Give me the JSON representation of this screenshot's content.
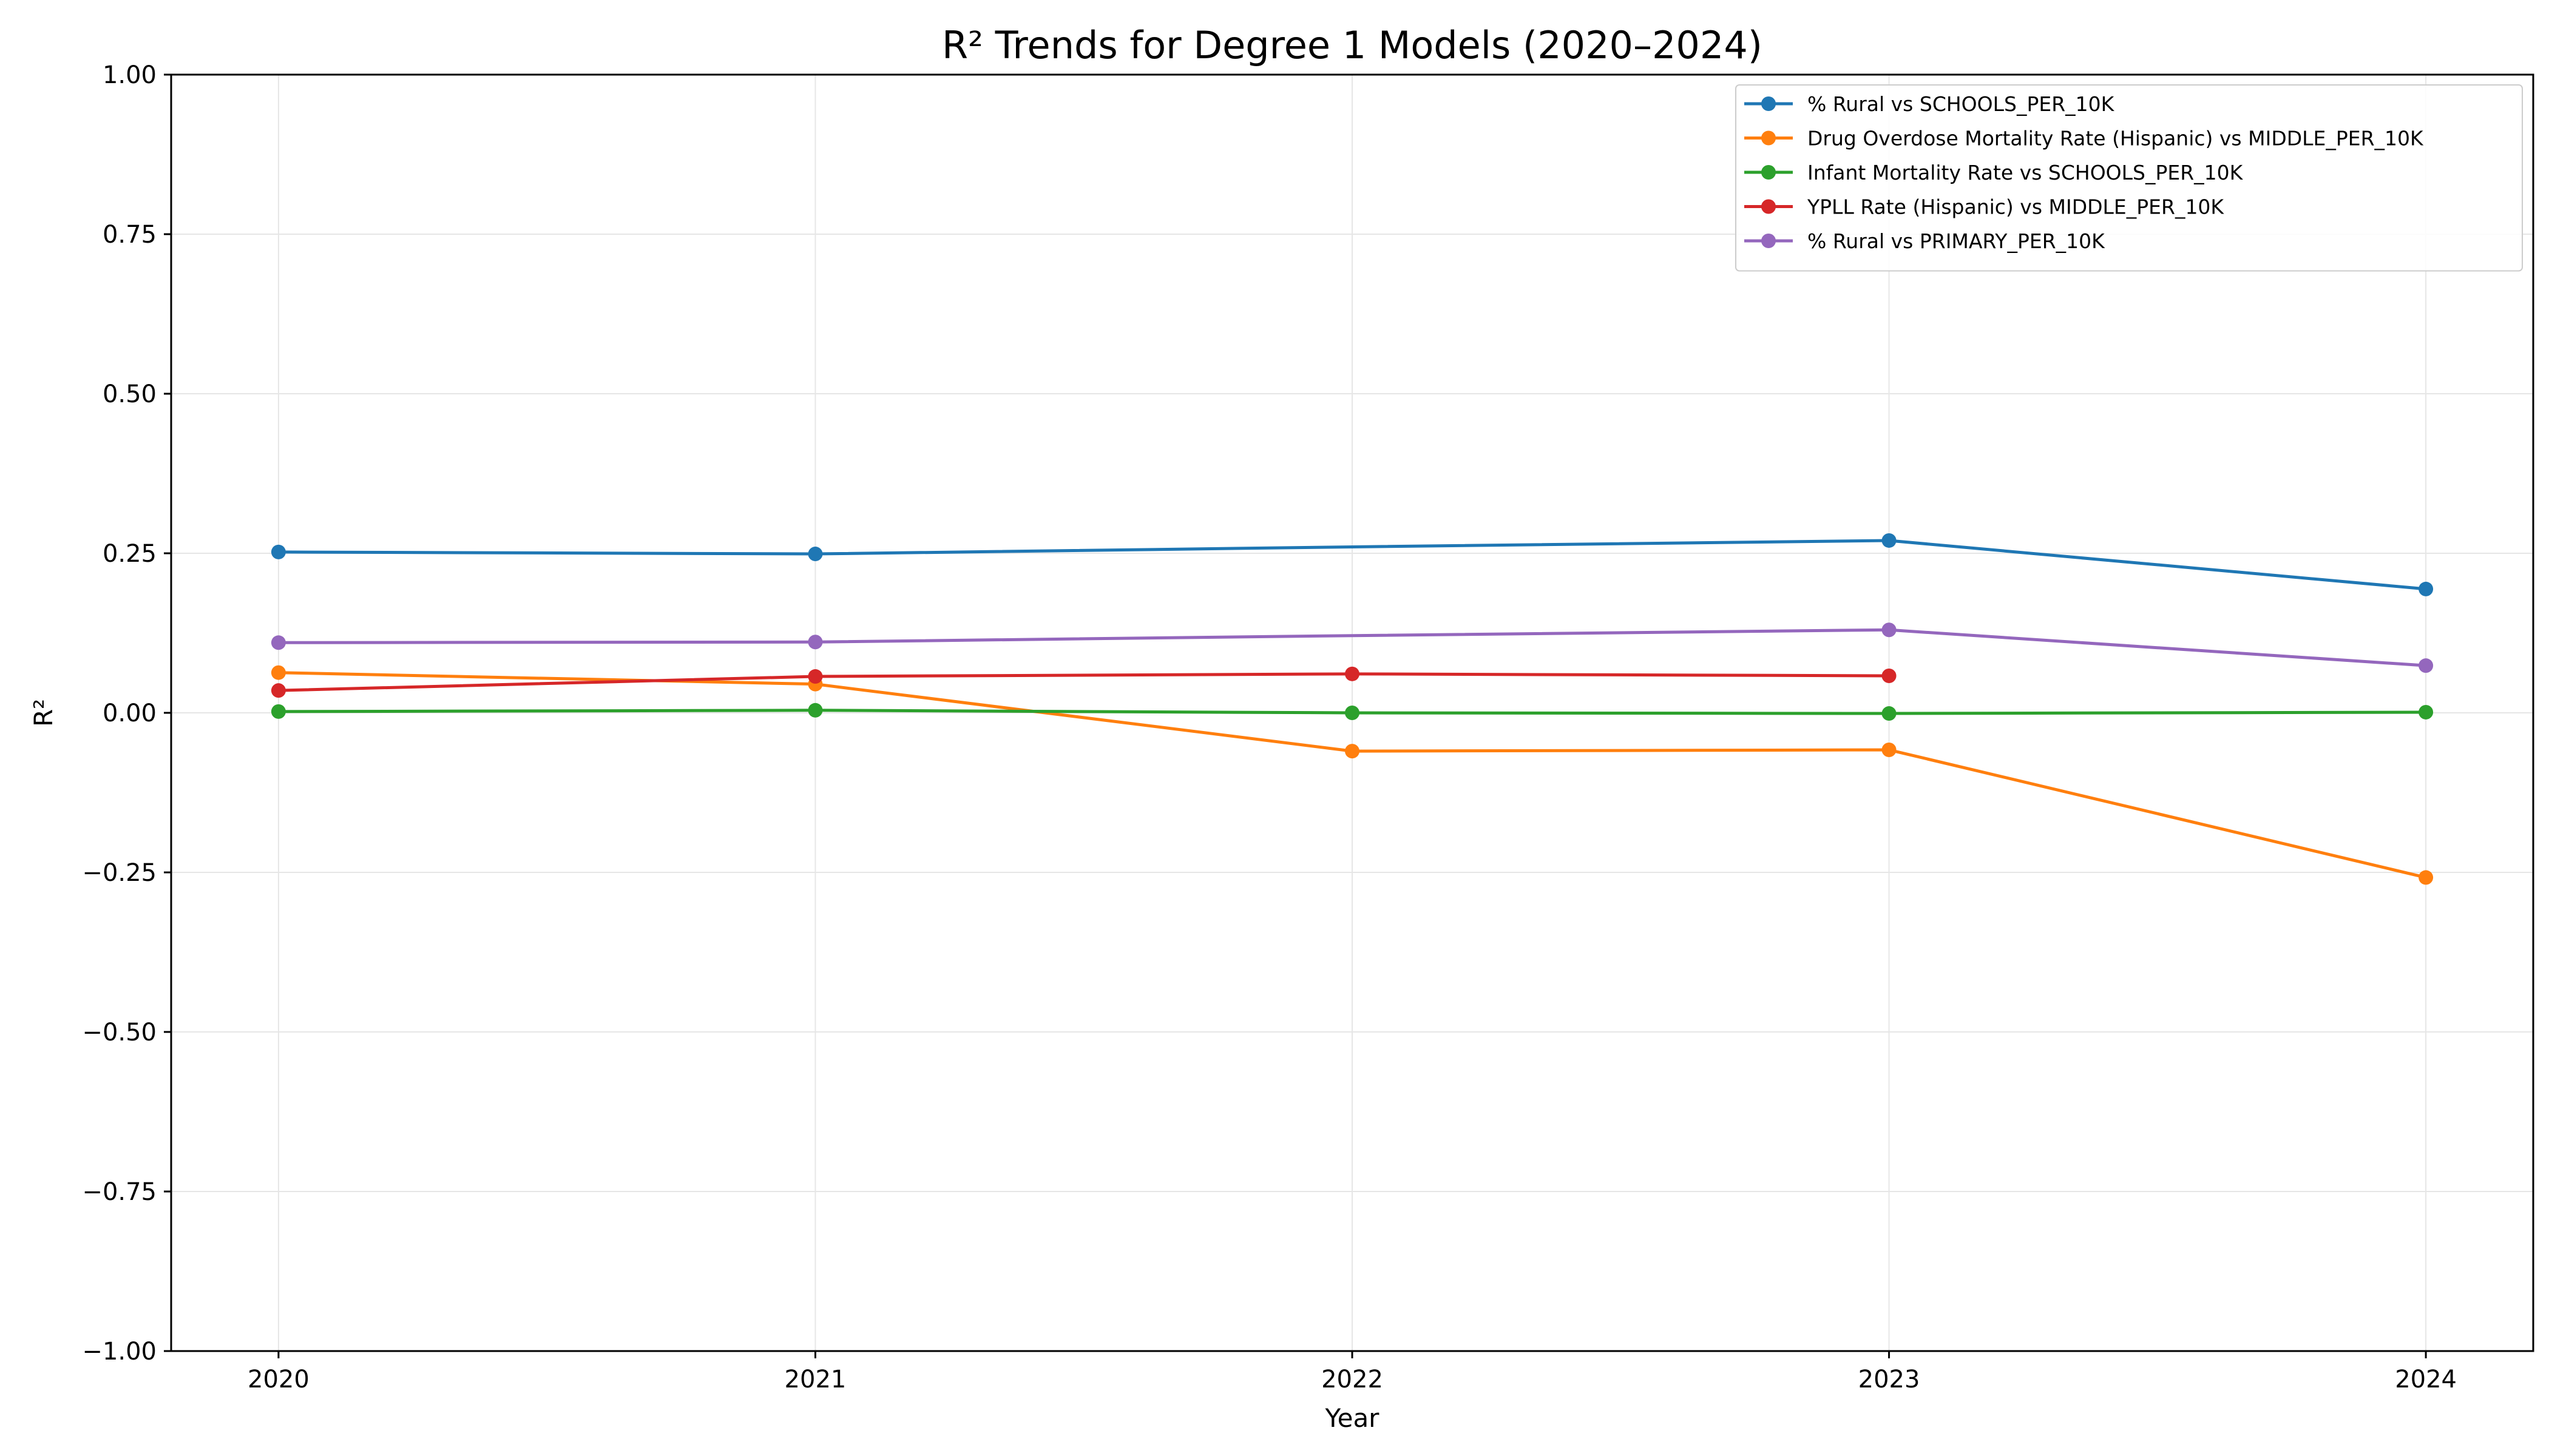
{
  "chart_data": {
    "type": "line",
    "title": "R² Trends for Degree 1 Models (2020–2024)",
    "xlabel": "Year",
    "ylabel": "R²",
    "x": [
      2020,
      2021,
      2022,
      2023,
      2024
    ],
    "x_tick_labels": [
      "2020",
      "2021",
      "2022",
      "2023",
      "2024"
    ],
    "ylim": [
      -1.0,
      1.0
    ],
    "y_ticks": [
      -1.0,
      -0.75,
      -0.5,
      -0.25,
      0.0,
      0.25,
      0.5,
      0.75,
      1.0
    ],
    "y_tick_labels": [
      "−1.00",
      "−0.75",
      "−0.50",
      "−0.25",
      "0.00",
      "0.25",
      "0.50",
      "0.75",
      "1.00"
    ],
    "grid": true,
    "legend_position": "top-right",
    "series": [
      {
        "name": "% Rural vs SCHOOLS_PER_10K",
        "color": "#1f77b4",
        "values": [
          0.252,
          0.249,
          0.26,
          0.27,
          0.194
        ],
        "marked": [
          true,
          true,
          false,
          true,
          true
        ]
      },
      {
        "name": "Drug Overdose Mortality Rate (Hispanic) vs MIDDLE_PER_10K",
        "color": "#ff7f0e",
        "values": [
          0.063,
          0.045,
          -0.06,
          -0.058,
          -0.258
        ],
        "marked": [
          true,
          true,
          true,
          true,
          true
        ]
      },
      {
        "name": "Infant Mortality Rate vs SCHOOLS_PER_10K",
        "color": "#2ca02c",
        "values": [
          0.002,
          0.004,
          0.0,
          -0.001,
          0.001
        ],
        "marked": [
          true,
          true,
          true,
          true,
          true
        ]
      },
      {
        "name": "YPLL Rate (Hispanic) vs MIDDLE_PER_10K",
        "color": "#d62728",
        "values": [
          0.035,
          0.057,
          0.061,
          0.058,
          null
        ],
        "marked": [
          true,
          true,
          true,
          true,
          false
        ]
      },
      {
        "name": "% Rural vs PRIMARY_PER_10K",
        "color": "#9467bd",
        "values": [
          0.11,
          0.111,
          0.121,
          0.13,
          0.074
        ],
        "marked": [
          true,
          true,
          false,
          true,
          true
        ]
      }
    ]
  }
}
